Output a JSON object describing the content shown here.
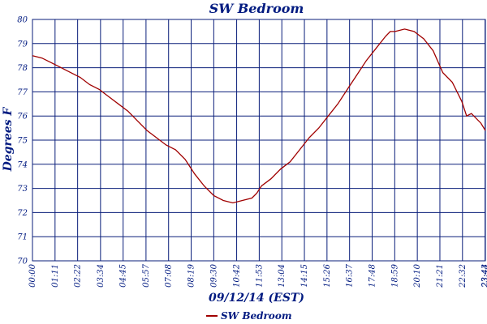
{
  "chart_data": {
    "type": "line",
    "title": "SW Bedroom",
    "xlabel": "09/12/14 (EST)",
    "ylabel": "Degrees F",
    "ylim": [
      70,
      80
    ],
    "y_ticks": [
      "70",
      "71",
      "72",
      "73",
      "74",
      "75",
      "76",
      "77",
      "78",
      "79",
      "80"
    ],
    "x_ticks": [
      "00:00",
      "01:11",
      "02:22",
      "03:34",
      "04:45",
      "05:57",
      "07:08",
      "08:19",
      "09:30",
      "10:42",
      "11:53",
      "13:04",
      "14:15",
      "15:26",
      "16:37",
      "17:48",
      "18:59",
      "20:10",
      "21:21",
      "22:32",
      "23:43",
      "23:44"
    ],
    "grid": true,
    "legend_position": "bottom-center",
    "series": [
      {
        "name": "SW Bedroom",
        "color": "#a00000",
        "x": [
          "00:00",
          "00:30",
          "01:00",
          "01:30",
          "02:00",
          "02:30",
          "03:00",
          "03:30",
          "04:00",
          "04:30",
          "05:00",
          "05:30",
          "06:00",
          "06:30",
          "07:00",
          "07:30",
          "08:00",
          "08:30",
          "09:00",
          "09:30",
          "10:00",
          "10:30",
          "11:00",
          "11:30",
          "11:45",
          "12:00",
          "12:30",
          "13:00",
          "13:30",
          "14:00",
          "14:30",
          "15:00",
          "15:30",
          "16:00",
          "16:30",
          "17:00",
          "17:30",
          "18:00",
          "18:30",
          "18:45",
          "19:00",
          "19:30",
          "20:00",
          "20:30",
          "21:00",
          "21:30",
          "22:00",
          "22:30",
          "22:45",
          "23:00",
          "23:30",
          "23:44"
        ],
        "values": [
          78.5,
          78.4,
          78.2,
          78.0,
          77.8,
          77.6,
          77.3,
          77.1,
          76.8,
          76.5,
          76.2,
          75.8,
          75.4,
          75.1,
          74.8,
          74.6,
          74.2,
          73.6,
          73.1,
          72.7,
          72.5,
          72.4,
          72.5,
          72.6,
          72.8,
          73.1,
          73.4,
          73.8,
          74.1,
          74.6,
          75.1,
          75.5,
          76.0,
          76.5,
          77.1,
          77.7,
          78.3,
          78.8,
          79.3,
          79.5,
          79.5,
          79.6,
          79.5,
          79.2,
          78.7,
          77.8,
          77.4,
          76.6,
          76.0,
          76.1,
          75.7,
          75.4
        ]
      }
    ]
  }
}
